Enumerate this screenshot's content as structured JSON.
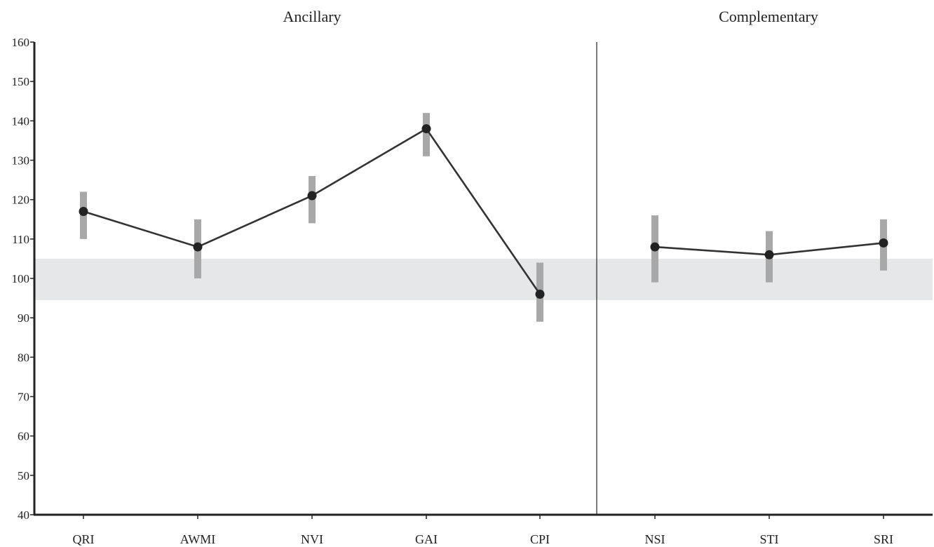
{
  "chart_data": {
    "type": "line",
    "panels": [
      {
        "title": "Ancillary",
        "categories": [
          "QRI",
          "AWMI",
          "NVI",
          "GAI",
          "CPI"
        ]
      },
      {
        "title": "Complementary",
        "categories": [
          "NSI",
          "STI",
          "SRI"
        ]
      }
    ],
    "categories": [
      "QRI",
      "AWMI",
      "NVI",
      "GAI",
      "CPI",
      "NSI",
      "STI",
      "SRI"
    ],
    "series": [
      {
        "values": [
          117,
          108,
          121,
          138,
          96,
          108,
          106,
          109
        ],
        "ci_low": [
          110,
          100,
          114,
          131,
          89,
          99,
          99,
          102
        ],
        "ci_high": [
          122,
          115,
          126,
          142,
          104,
          116,
          112,
          115
        ]
      }
    ],
    "reference_band": [
      94.5,
      105
    ],
    "ylim": [
      40,
      160
    ],
    "yticks": [
      40,
      50,
      60,
      70,
      80,
      90,
      100,
      110,
      120,
      130,
      140,
      150,
      160
    ],
    "grid": false,
    "colors": {
      "line": "#333333",
      "marker": "#222222",
      "error_bar": "#a8a8a8",
      "band": "#e6e7e8",
      "axis": "#222222"
    }
  }
}
